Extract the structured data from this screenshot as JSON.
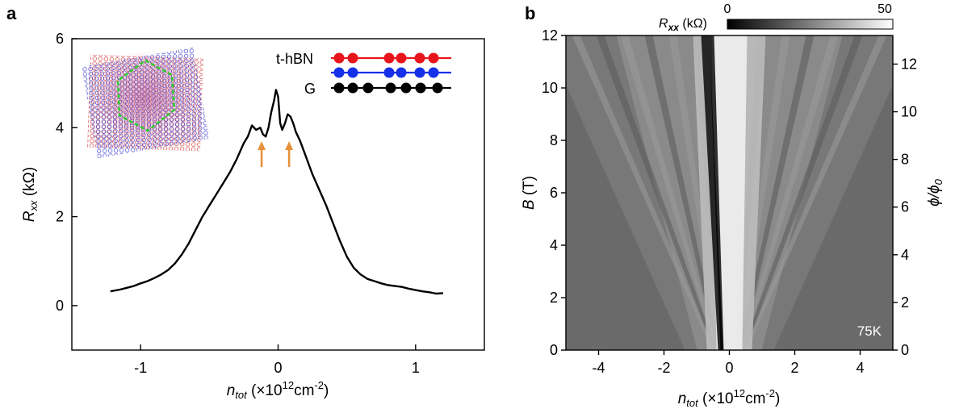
{
  "figure": {
    "panel_a_letter": "a",
    "panel_b_letter": "b"
  },
  "colors": {
    "curve": "#000000",
    "arrow": "#e8913a",
    "legend_red": "#e8141c",
    "legend_blue": "#1530e8",
    "legend_black": "#000000",
    "lattice_red": "#d23a3a",
    "lattice_blue": "#3a3ad2",
    "hexagon": "#2ecc2e"
  },
  "chart_data": [
    {
      "panel": "a",
      "type": "line",
      "xlabel_main": "n",
      "xlabel_sub": "tot",
      "xlabel_rest": " (×10",
      "xlabel_exp": "12",
      "xlabel_unit": "cm",
      "xlabel_unit_exp": "-2",
      "xlabel_close": ")",
      "ylabel_main": "R",
      "ylabel_sub": "xx",
      "ylabel_rest": " (kΩ)",
      "xlim": [
        -1.5,
        1.5
      ],
      "ylim": [
        -1,
        6
      ],
      "xticks": [
        -1,
        0,
        1
      ],
      "xtick_labels": [
        "-1",
        "0",
        "1"
      ],
      "yticks": [
        0,
        2,
        4,
        6
      ],
      "ytick_labels": [
        "0",
        "2",
        "4",
        "6"
      ],
      "series": [
        {
          "x": [
            -1.22,
            -1.15,
            -1.1,
            -1.05,
            -1.0,
            -0.95,
            -0.9,
            -0.85,
            -0.8,
            -0.75,
            -0.7,
            -0.65,
            -0.6,
            -0.55,
            -0.5,
            -0.45,
            -0.4,
            -0.35,
            -0.3,
            -0.25,
            -0.22,
            -0.19,
            -0.16,
            -0.13,
            -0.11,
            -0.09,
            -0.07,
            -0.05,
            -0.03,
            -0.015,
            0.0,
            0.015,
            0.03,
            0.05,
            0.07,
            0.09,
            0.11,
            0.13,
            0.16,
            0.19,
            0.22,
            0.25,
            0.3,
            0.35,
            0.4,
            0.45,
            0.5,
            0.55,
            0.6,
            0.65,
            0.7,
            0.75,
            0.8,
            0.85,
            0.9,
            0.95,
            1.0,
            1.05,
            1.1,
            1.15,
            1.2
          ],
          "y": [
            0.32,
            0.36,
            0.4,
            0.44,
            0.5,
            0.55,
            0.62,
            0.7,
            0.8,
            0.95,
            1.15,
            1.4,
            1.7,
            2.0,
            2.25,
            2.5,
            2.75,
            3.0,
            3.3,
            3.65,
            3.8,
            4.05,
            3.95,
            4.0,
            3.85,
            3.8,
            4.0,
            4.35,
            4.6,
            4.85,
            4.7,
            4.1,
            3.95,
            4.1,
            4.3,
            4.25,
            4.1,
            3.9,
            3.7,
            3.45,
            3.2,
            2.95,
            2.6,
            2.25,
            1.85,
            1.45,
            1.1,
            0.85,
            0.7,
            0.6,
            0.55,
            0.5,
            0.46,
            0.44,
            0.42,
            0.38,
            0.35,
            0.32,
            0.3,
            0.27,
            0.28
          ]
        }
      ],
      "annotations": {
        "arrows_x": [
          -0.12,
          0.08
        ],
        "legend": [
          {
            "label": "t-hBN",
            "color": "#e8141c"
          },
          {
            "label": "",
            "color": "#1530e8"
          },
          {
            "label": "G",
            "color": "#000000"
          }
        ]
      }
    },
    {
      "panel": "b",
      "type": "heatmap",
      "xlabel_main": "n",
      "xlabel_sub": "tot",
      "xlabel_rest": " (×10",
      "xlabel_exp": "12",
      "xlabel_unit": "cm",
      "xlabel_unit_exp": "-2",
      "xlabel_close": ")",
      "ylabel_main": "B",
      "ylabel_rest": " (T)",
      "y2label": "ϕ/ϕ",
      "y2label_sub": "0",
      "xlim": [
        -5,
        5
      ],
      "ylim": [
        0,
        12
      ],
      "y2lim": [
        0,
        13.2
      ],
      "xticks": [
        -4,
        -2,
        0,
        2,
        4
      ],
      "xtick_labels": [
        "-4",
        "-2",
        "0",
        "2",
        "4"
      ],
      "yticks": [
        0,
        2,
        4,
        6,
        8,
        10,
        12
      ],
      "ytick_labels": [
        "0",
        "2",
        "4",
        "6",
        "8",
        "10",
        "12"
      ],
      "y2ticks": [
        0,
        2,
        4,
        6,
        8,
        10,
        12
      ],
      "y2tick_labels": [
        "0",
        "2",
        "4",
        "6",
        "8",
        "10",
        "12"
      ],
      "colorbar": {
        "label_main": "R",
        "label_sub": "xx",
        "label_rest": " (kΩ)",
        "min": 0,
        "max": 50,
        "min_label": "0",
        "max_label": "50",
        "colors": [
          "#000000",
          "#ffffff"
        ]
      },
      "temperature_label": "75K"
    }
  ]
}
